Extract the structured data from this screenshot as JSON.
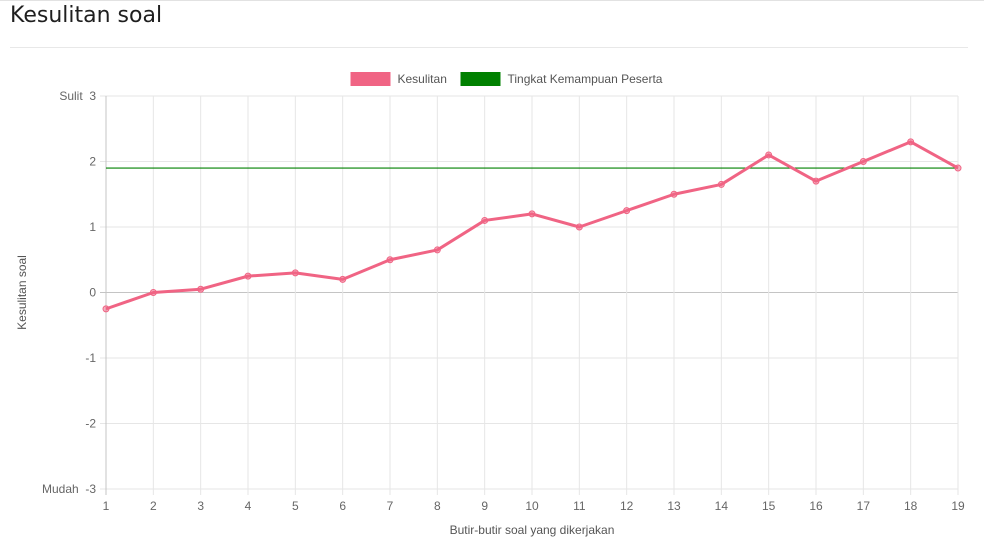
{
  "page": {
    "title": "Kesulitan soal"
  },
  "chart_data": {
    "type": "line",
    "x": [
      1,
      2,
      3,
      4,
      5,
      6,
      7,
      8,
      9,
      10,
      11,
      12,
      13,
      14,
      15,
      16,
      17,
      18,
      19
    ],
    "series": [
      {
        "name": "Kesulitan",
        "values": [
          -0.25,
          0,
          0.05,
          0.25,
          0.3,
          0.2,
          0.5,
          0.65,
          1.1,
          1.2,
          1.0,
          1.25,
          1.5,
          1.65,
          2.1,
          1.7,
          2.0,
          2.3,
          1.9
        ],
        "color": "#f06484"
      },
      {
        "name": "Tingkat Kemampuan Peserta",
        "values": [
          1.9,
          1.9,
          1.9,
          1.9,
          1.9,
          1.9,
          1.9,
          1.9,
          1.9,
          1.9,
          1.9,
          1.9,
          1.9,
          1.9,
          1.9,
          1.9,
          1.9,
          1.9,
          1.9
        ],
        "color": "#008000"
      }
    ],
    "xlabel": "Butir-butir soal yang dikerjakan",
    "ylabel": "Kesulitan soal",
    "ylim": [
      -3,
      3
    ],
    "yticks": [
      {
        "value": 3,
        "label": "Sulit  3"
      },
      {
        "value": 2,
        "label": "2"
      },
      {
        "value": 1,
        "label": "1"
      },
      {
        "value": 0,
        "label": "0"
      },
      {
        "value": -1,
        "label": "-1"
      },
      {
        "value": -2,
        "label": "-2"
      },
      {
        "value": -3,
        "label": "Mudah  -3"
      }
    ],
    "grid": true,
    "legend_position": "top"
  }
}
